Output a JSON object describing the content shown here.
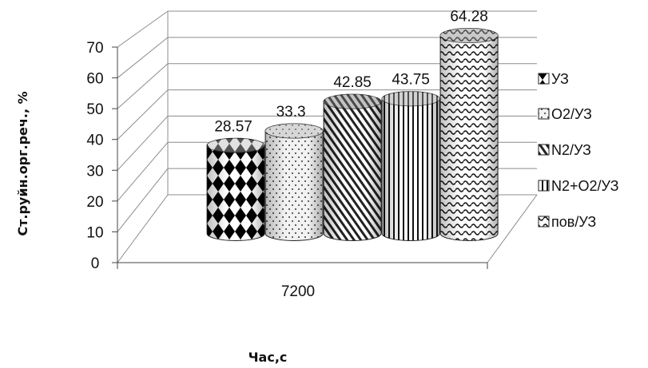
{
  "chart_data": {
    "type": "bar",
    "style": "3d-cylinder",
    "categories": [
      "7200"
    ],
    "series": [
      {
        "name": "УЗ",
        "values": [
          28.57
        ],
        "pattern": "diamond-checker"
      },
      {
        "name": "O2/УЗ",
        "values": [
          33.3
        ],
        "pattern": "dots"
      },
      {
        "name": "N2/УЗ",
        "values": [
          42.85
        ],
        "pattern": "diagonal-lines"
      },
      {
        "name": "N2+O2/УЗ",
        "values": [
          43.75
        ],
        "pattern": "vertical-lines"
      },
      {
        "name": "пов/УЗ",
        "values": [
          64.28
        ],
        "pattern": "waves"
      }
    ],
    "data_labels": [
      "28.57",
      "33.3",
      "42.85",
      "43.75",
      "64.28"
    ],
    "yticks": [
      "0",
      "10",
      "20",
      "30",
      "40",
      "50",
      "60",
      "70"
    ],
    "ylim": [
      0,
      70
    ],
    "xlabel": "Час,с",
    "ylabel": "Ст.руйн.орг.реч., %",
    "grid": true,
    "legend_position": "right"
  }
}
